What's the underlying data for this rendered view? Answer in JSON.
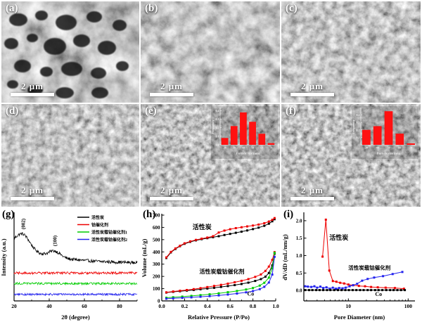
{
  "figure": {
    "sem_panels": [
      {
        "id": "a",
        "label": "(a)",
        "scale_bar": "2 μm"
      },
      {
        "id": "b",
        "label": "(b)",
        "scale_bar": "2 μm"
      },
      {
        "id": "c",
        "label": "(c)",
        "scale_bar": "2 μm"
      },
      {
        "id": "d",
        "label": "(d)",
        "scale_bar": "2 μm"
      },
      {
        "id": "e",
        "label": "(e)",
        "scale_bar": "2 μm"
      },
      {
        "id": "f",
        "label": "(f)",
        "scale_bar": "2 μm"
      }
    ],
    "chart_panels": [
      {
        "label": "(g)"
      },
      {
        "label": "(h)"
      },
      {
        "label": "(i)"
      }
    ],
    "colors": {
      "red": "#ee0000",
      "green": "#00cc00",
      "blue": "#2222ee",
      "black": "#000000",
      "bar_red": "#ff1111"
    }
  },
  "chart_data": [
    {
      "id": "g",
      "type": "line",
      "panel": "(g)",
      "xlabel": "2θ (degree)",
      "ylabel": "Intensity (a.u.)",
      "xlim": [
        20,
        90
      ],
      "ylim": [
        0,
        1
      ],
      "xticks": [
        20,
        40,
        60,
        80
      ],
      "xminor": [
        30,
        50,
        70,
        90
      ],
      "xtick_decimals": 0,
      "margins": {
        "l": 20,
        "r": 5,
        "t": 8,
        "b": 30
      },
      "legend": [
        {
          "label": "活性炭",
          "color": "#000000"
        },
        {
          "label": "钴催化剂",
          "color": "#ee0000"
        },
        {
          "label": "活性炭载钴催化剂1",
          "color": "#00cc00"
        },
        {
          "label": "活性炭载钴催化剂2",
          "color": "#2222ee"
        }
      ],
      "peak_labels": [
        {
          "text": "(002)",
          "two_theta": 25
        },
        {
          "text": "(100)",
          "two_theta": 43
        }
      ],
      "series": [
        {
          "name": "活性炭",
          "color": "#000000",
          "baseline": 0.43,
          "decay_amp": 0.21,
          "decay_k": 22,
          "peaks": [
            {
              "center": 25,
              "height": 0.17,
              "sigma": 4.0
            },
            {
              "center": 43,
              "height": 0.07,
              "sigma": 3.2
            }
          ],
          "noise": 0.018
        },
        {
          "name": "钴催化剂",
          "color": "#ee0000",
          "baseline": 0.32,
          "decay_amp": 0,
          "decay_k": 1,
          "peaks": [],
          "noise": 0.014
        },
        {
          "name": "活性炭载钴催化剂1",
          "color": "#00cc00",
          "baseline": 0.2,
          "decay_amp": 0,
          "decay_k": 1,
          "peaks": [],
          "noise": 0.013
        },
        {
          "name": "活性炭载钴催化剂2",
          "color": "#2222ee",
          "baseline": 0.075,
          "decay_amp": 0,
          "decay_k": 1,
          "peaks": [],
          "noise": 0.012
        }
      ]
    },
    {
      "id": "h",
      "type": "line",
      "panel": "(h)",
      "xlabel": "Relative Pressure (P/Po)",
      "ylabel": "Volume (mL/g)",
      "xscale": "linear",
      "xlim": [
        0,
        1.0
      ],
      "ylim": [
        0,
        700
      ],
      "xticks": [
        0,
        0.2,
        0.4,
        0.6,
        0.8,
        1.0
      ],
      "xminor": [
        0.1,
        0.3,
        0.5,
        0.7,
        0.9
      ],
      "yticks": [
        0,
        100,
        200,
        300,
        400,
        500,
        600,
        700
      ],
      "xtick_decimals": 1,
      "ytick_decimals": 0,
      "margins": {
        "l": 30,
        "r": 8,
        "t": 10,
        "b": 30
      },
      "annotations": [
        {
          "text": "活性炭",
          "x": 0.27,
          "y": 585,
          "size": 9
        },
        {
          "text": "活性炭载钴催化剂",
          "x": 0.33,
          "y": 225,
          "size": 8
        },
        {
          "text": "Co",
          "x": 0.75,
          "y": 42,
          "size": 8
        }
      ],
      "series": [
        {
          "name": "活性炭 adsorption",
          "color": "#000000",
          "marker": true,
          "x": [
            0.04,
            0.08,
            0.12,
            0.16,
            0.2,
            0.25,
            0.3,
            0.35,
            0.4,
            0.45,
            0.5,
            0.55,
            0.6,
            0.65,
            0.7,
            0.75,
            0.8,
            0.85,
            0.9,
            0.94,
            0.97,
            0.99
          ],
          "y": [
            350,
            396,
            424,
            447,
            466,
            482,
            494,
            504,
            512,
            520,
            528,
            538,
            547,
            556,
            565,
            575,
            586,
            598,
            613,
            630,
            650,
            667
          ]
        },
        {
          "name": "活性炭 desorption",
          "color": "#ee0000",
          "marker": true,
          "x": [
            0.04,
            0.08,
            0.12,
            0.16,
            0.2,
            0.25,
            0.3,
            0.35,
            0.4,
            0.45,
            0.5,
            0.55,
            0.6,
            0.65,
            0.7,
            0.75,
            0.8,
            0.85,
            0.9,
            0.94,
            0.97,
            0.99
          ],
          "y": [
            355,
            400,
            428,
            450,
            470,
            486,
            498,
            508,
            517,
            528,
            558,
            574,
            585,
            594,
            601,
            608,
            615,
            623,
            634,
            648,
            662,
            676
          ]
        },
        {
          "name": "活性炭载钴催化剂 adsorption",
          "color": "#000000",
          "marker": true,
          "x": [
            0.04,
            0.1,
            0.16,
            0.22,
            0.28,
            0.34,
            0.4,
            0.46,
            0.52,
            0.58,
            0.64,
            0.7,
            0.76,
            0.82,
            0.87,
            0.91,
            0.94,
            0.97,
            0.99
          ],
          "y": [
            68,
            74,
            79,
            84,
            89,
            95,
            101,
            107,
            114,
            121,
            129,
            138,
            149,
            163,
            178,
            198,
            228,
            290,
            385
          ]
        },
        {
          "name": "活性炭载钴催化剂 desorption",
          "color": "#ee0000",
          "marker": true,
          "x": [
            0.04,
            0.1,
            0.16,
            0.22,
            0.28,
            0.34,
            0.4,
            0.46,
            0.52,
            0.58,
            0.64,
            0.7,
            0.76,
            0.82,
            0.87,
            0.91,
            0.94,
            0.97,
            0.99
          ],
          "y": [
            70,
            77,
            83,
            89,
            96,
            104,
            113,
            122,
            131,
            141,
            152,
            164,
            178,
            196,
            216,
            245,
            280,
            335,
            398
          ]
        },
        {
          "name": "Co branch 1",
          "color": "#00cc00",
          "marker": true,
          "x": [
            0.04,
            0.1,
            0.18,
            0.26,
            0.34,
            0.42,
            0.5,
            0.58,
            0.66,
            0.74,
            0.8,
            0.86,
            0.9,
            0.94,
            0.97,
            0.99
          ],
          "y": [
            26,
            30,
            35,
            41,
            47,
            54,
            62,
            71,
            81,
            93,
            105,
            125,
            148,
            190,
            265,
            392
          ]
        },
        {
          "name": "Co branch 2",
          "color": "#2222ee",
          "marker": true,
          "x": [
            0.04,
            0.1,
            0.18,
            0.26,
            0.34,
            0.42,
            0.5,
            0.58,
            0.66,
            0.74,
            0.8,
            0.86,
            0.9,
            0.94,
            0.97,
            0.99
          ],
          "y": [
            18,
            21,
            25,
            29,
            34,
            39,
            45,
            52,
            60,
            70,
            80,
            96,
            115,
            150,
            215,
            360
          ]
        }
      ]
    },
    {
      "id": "i",
      "type": "line",
      "panel": "(i)",
      "xlabel": "Pore Diameter (nm)",
      "ylabel": "dV/dD (mL/nm/g)",
      "xscale": "log",
      "xlim": [
        1.8,
        130
      ],
      "ylim": [
        -0.3,
        2.2
      ],
      "xticks": [
        10,
        100
      ],
      "xminor": [
        2,
        3,
        4,
        5,
        6,
        7,
        8,
        9,
        20,
        30,
        40,
        50,
        60,
        70,
        80,
        90
      ],
      "yticks": [
        0,
        0.5,
        1.0,
        1.5,
        2.0
      ],
      "xtick_decimals": 0,
      "ytick_decimals": 1,
      "margins": {
        "l": 32,
        "r": 10,
        "t": 8,
        "b": 30
      },
      "annotations": [
        {
          "text": "活性炭",
          "x": 4.8,
          "y": 1.45,
          "size": 9
        },
        {
          "text": "活性炭载钴催化剂",
          "x": 10,
          "y": 0.6,
          "size": 7.5
        },
        {
          "text": "Co",
          "x": 28,
          "y": -0.16,
          "size": 8
        }
      ],
      "series": [
        {
          "name": "活性炭",
          "color": "#ee0000",
          "marker": true,
          "x": [
            3.7,
            4.2,
            4.8,
            5.5,
            6.3,
            7.3,
            8.5,
            10,
            12,
            15,
            19,
            24,
            31,
            42,
            60,
            85
          ],
          "y": [
            0.97,
            2.03,
            0.57,
            0.27,
            0.25,
            0.22,
            0.2,
            0.17,
            0.15,
            0.13,
            0.12,
            0.1,
            0.09,
            0.08,
            0.07,
            0.05
          ]
        },
        {
          "name": "活性炭载钴催化剂",
          "color": "#2222ee",
          "marker": true,
          "x": [
            1.9,
            2.1,
            2.4,
            2.7,
            3.0,
            3.4,
            3.8,
            4.3,
            4.9,
            5.5,
            6.2,
            7.0,
            8.0,
            9.0,
            10.5,
            12,
            14,
            17,
            21,
            27,
            38,
            55,
            80
          ],
          "y": [
            0.12,
            0.11,
            0.1,
            0.12,
            0.08,
            0.11,
            0.07,
            0.09,
            0.05,
            0.08,
            0.05,
            0.07,
            0.06,
            0.08,
            0.12,
            0.15,
            0.19,
            0.28,
            0.33,
            0.37,
            0.41,
            0.47,
            0.53
          ]
        },
        {
          "name": "Co",
          "color": "#000000",
          "marker": true,
          "x": [
            1.9,
            2.2,
            2.5,
            2.9,
            3.3,
            3.8,
            4.4,
            5.0,
            5.8,
            6.7,
            7.7,
            8.9,
            10.2,
            11.8,
            13.6,
            15.7,
            18,
            21,
            24,
            28,
            32,
            37,
            43,
            50,
            57,
            66,
            76,
            88
          ],
          "y": [
            0.01,
            0.01,
            0.01,
            0.01,
            0.01,
            0.01,
            0.01,
            0.01,
            0.01,
            0.01,
            0.01,
            0.01,
            0.01,
            0.01,
            0.01,
            0.01,
            0.01,
            0.01,
            0.01,
            0.01,
            0.01,
            0.01,
            0.01,
            0.01,
            0.01,
            0.01,
            0.01,
            0.01
          ]
        }
      ]
    },
    {
      "id": "e-inset",
      "type": "bar",
      "xlabel": "Particle size (nm)",
      "ylabel": "Frequency",
      "categories": [
        "20",
        "30",
        "40",
        "50",
        "60",
        "70"
      ],
      "values": [
        0.08,
        0.22,
        0.38,
        0.27,
        0.13,
        0.02
      ],
      "ylim": [
        0,
        0.42
      ],
      "yticks": [
        0,
        0.1,
        0.2,
        0.3,
        0.4
      ],
      "bar_color": "#ff1111"
    },
    {
      "id": "f-inset",
      "type": "bar",
      "xlabel": "Particle size (nm)",
      "ylabel": "Frequency",
      "categories": [
        "30",
        "40",
        "50",
        "60",
        "70"
      ],
      "values": [
        0.2,
        0.25,
        0.45,
        0.15,
        0.02
      ],
      "ylim": [
        0,
        0.48
      ],
      "yticks": [
        0.1,
        0.2,
        0.3,
        0.4
      ],
      "bar_color": "#ff1111"
    }
  ]
}
